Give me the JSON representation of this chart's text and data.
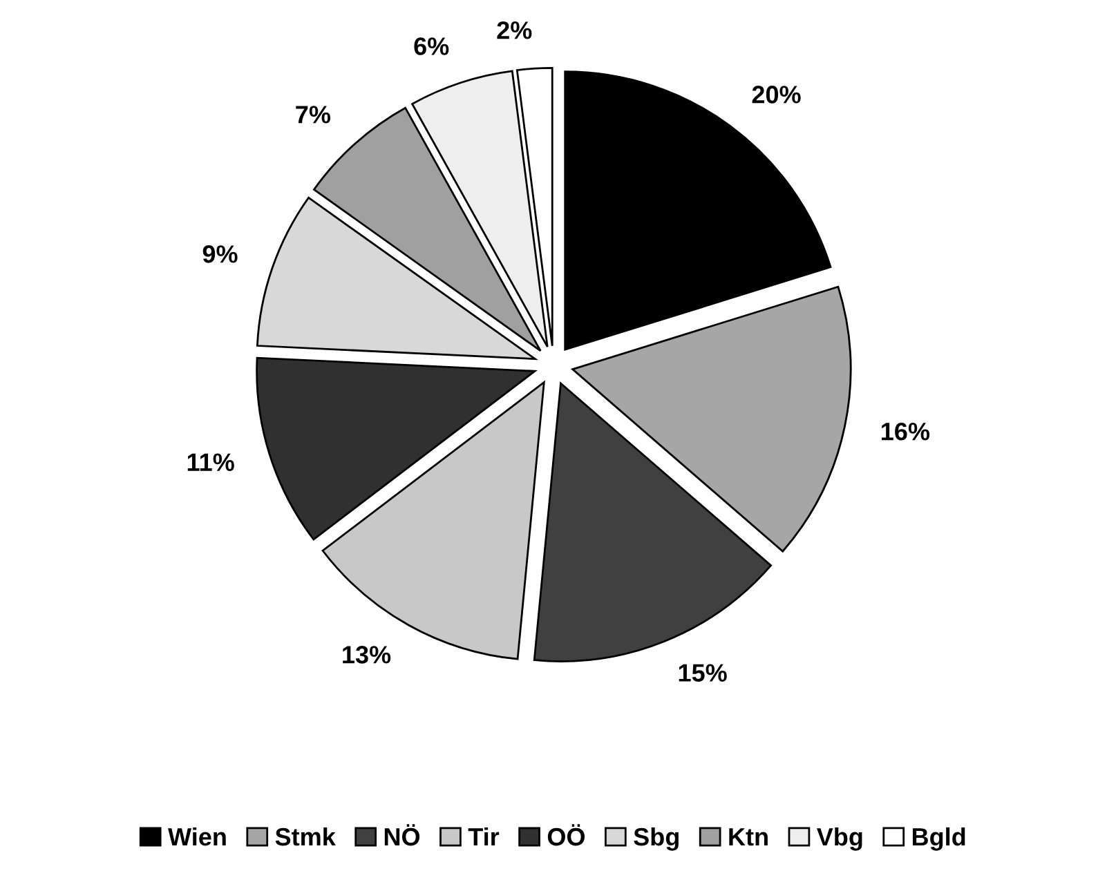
{
  "chart_data": {
    "type": "pie",
    "categories": [
      "Wien",
      "Stmk",
      "NÖ",
      "Tir",
      "OÖ",
      "Sbg",
      "Ktn",
      "Vbg",
      "Bgld"
    ],
    "values": [
      20,
      16,
      15,
      13,
      11,
      9,
      7,
      6,
      2
    ],
    "colors": [
      "#000000",
      "#a6a6a6",
      "#404040",
      "#c8c8c8",
      "#303030",
      "#d8d8d8",
      "#a0a0a0",
      "#eeeeee",
      "#ffffff"
    ],
    "value_labels": [
      "20%",
      "16%",
      "15%",
      "13%",
      "11%",
      "9%",
      "7%",
      "6%",
      "2%"
    ],
    "legend": "bottom"
  }
}
